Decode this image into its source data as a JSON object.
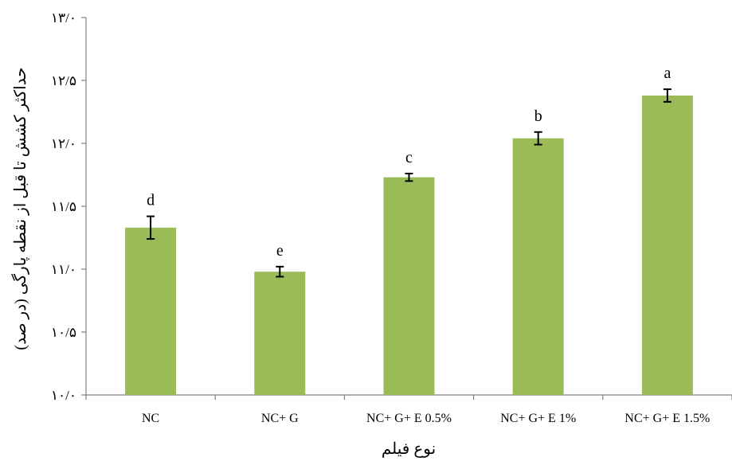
{
  "chart_data": {
    "type": "bar",
    "xlabel": "نوع فیلم",
    "ylabel": "حداکثر کشش تا قبل از نقطه پارگی (در صد)",
    "ylim": [
      10.0,
      13.0
    ],
    "yticks": [
      10.0,
      10.5,
      11.0,
      11.5,
      12.0,
      12.5,
      13.0
    ],
    "ytick_labels": [
      "۱۰/۰",
      "۱۰/۵",
      "۱۱/۰",
      "۱۱/۵",
      "۱۲/۰",
      "۱۲/۵",
      "۱۳/۰"
    ],
    "categories": [
      "NC",
      "NC+ G",
      "NC+ G+ E 0.5%",
      "NC+ G+ E 1%",
      "NC+ G+ E 1.5%"
    ],
    "values": [
      11.33,
      10.98,
      11.73,
      12.04,
      12.38
    ],
    "errors": [
      0.09,
      0.04,
      0.03,
      0.05,
      0.05
    ],
    "significance_letters": [
      "d",
      "e",
      "c",
      "b",
      "a"
    ],
    "bar_color": "#9bbb59",
    "grid": false,
    "legend": "none"
  }
}
